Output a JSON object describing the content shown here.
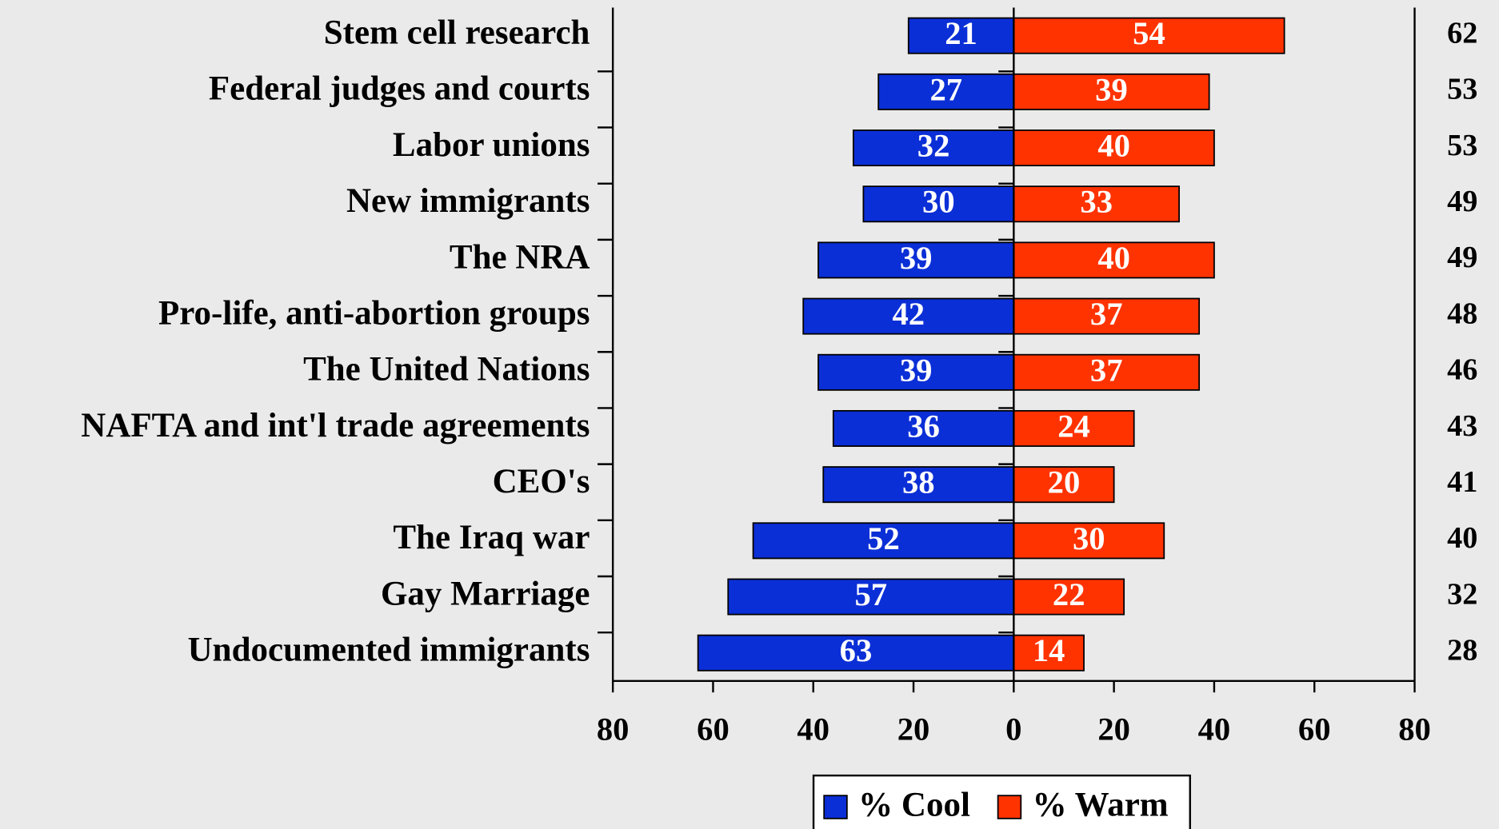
{
  "chart_data": {
    "type": "diverging_bar",
    "categories": [
      "Stem cell research",
      "Federal judges and courts",
      "Labor unions",
      "New immigrants",
      "The NRA",
      "Pro-life, anti-abortion groups",
      "The United Nations",
      "NAFTA and int'l trade agreements",
      "CEO's",
      "The Iraq war",
      "Gay Marriage",
      "Undocumented immigrants"
    ],
    "series": [
      {
        "name": "% Cool",
        "color": "#0b2fd6",
        "values": [
          -21,
          -27,
          -32,
          -30,
          -39,
          -42,
          -39,
          -36,
          -38,
          -52,
          -57,
          -63
        ],
        "value_labels": [
          "21",
          "27",
          "32",
          "30",
          "39",
          "42",
          "39",
          "36",
          "38",
          "52",
          "57",
          "63"
        ]
      },
      {
        "name": "% Warm",
        "color": "#ff3300",
        "values": [
          54,
          39,
          40,
          33,
          40,
          37,
          37,
          24,
          20,
          30,
          22,
          14
        ]
      }
    ],
    "scores": [
      62,
      53,
      53,
      49,
      49,
      48,
      46,
      43,
      41,
      40,
      32,
      28
    ],
    "xlim": [
      -80,
      80
    ],
    "xticks": [
      {
        "value": -80,
        "label": "80"
      },
      {
        "value": -60,
        "label": "60"
      },
      {
        "value": -40,
        "label": "40"
      },
      {
        "value": -20,
        "label": "20"
      },
      0,
      20,
      40,
      60,
      80
    ],
    "legend": "bottom"
  }
}
